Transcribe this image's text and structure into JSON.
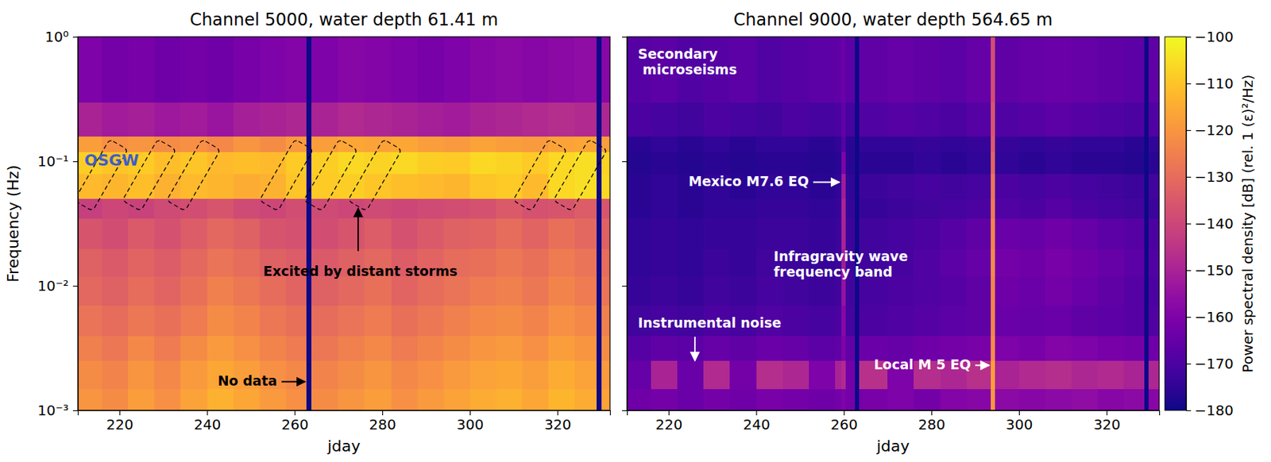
{
  "chart_data": [
    {
      "type": "heatmap",
      "title": "Channel 5000, water depth 61.41 m",
      "xlabel": "jday",
      "ylabel": "Frequency (Hz)",
      "log": "y",
      "xlim": [
        210.5,
        332
      ],
      "ylim": [
        0.001,
        1
      ],
      "xticks": [
        220,
        240,
        260,
        280,
        300,
        320
      ],
      "yticks": [
        {
          "value": 0.001,
          "label": "10⁻³"
        },
        {
          "value": 0.01,
          "label": "10⁻²"
        },
        {
          "value": 0.1,
          "label": "10⁻¹"
        },
        {
          "value": 1,
          "label": "10⁰"
        }
      ],
      "x_edges": [
        210.5,
        216,
        222,
        228,
        234,
        240,
        246,
        252,
        258,
        262.6,
        263.8,
        270,
        276,
        282,
        288,
        294,
        300,
        306,
        312,
        318,
        324,
        328.8,
        330,
        332
      ],
      "y_edges": [
        0.001,
        0.0015,
        0.0025,
        0.004,
        0.007,
        0.012,
        0.02,
        0.035,
        0.05,
        0.08,
        0.12,
        0.16,
        0.3,
        1
      ],
      "cells": [
        [
          -120,
          -122,
          -118,
          -121,
          -117,
          -114,
          -116,
          -119,
          -121,
          null,
          -122,
          -120,
          -118,
          -121,
          -119,
          -117,
          -115,
          -114,
          -116,
          -113,
          -115,
          null,
          -117
        ],
        [
          -122,
          -124,
          -120,
          -123,
          -119,
          -116,
          -118,
          -121,
          -123,
          null,
          -124,
          -122,
          -120,
          -123,
          -121,
          -119,
          -117,
          -116,
          -118,
          -115,
          -117,
          null,
          -119
        ],
        [
          -125,
          -127,
          -123,
          -126,
          -122,
          -119,
          -121,
          -124,
          -126,
          null,
          -127,
          -125,
          -123,
          -126,
          -124,
          -122,
          -120,
          -119,
          -121,
          -118,
          -120,
          null,
          -122
        ],
        [
          -128,
          -130,
          -127,
          -129,
          -126,
          -122,
          -124,
          -127,
          -129,
          null,
          -130,
          -128,
          -126,
          -129,
          -127,
          -125,
          -123,
          -122,
          -124,
          -121,
          -123,
          null,
          -125
        ],
        [
          -131,
          -133,
          -130,
          -132,
          -129,
          -125,
          -127,
          -130,
          -132,
          null,
          -133,
          -131,
          -129,
          -132,
          -130,
          -128,
          -126,
          -125,
          -127,
          -124,
          -126,
          null,
          -128
        ],
        [
          -133,
          -135,
          -132,
          -134,
          -131,
          -128,
          -130,
          -133,
          -134,
          null,
          -135,
          -133,
          -131,
          -134,
          -132,
          -130,
          -129,
          -127,
          -129,
          -126,
          -128,
          null,
          -130
        ],
        [
          -136,
          -138,
          -135,
          -137,
          -134,
          -131,
          -133,
          -136,
          -137,
          null,
          -138,
          -136,
          -134,
          -137,
          -135,
          -133,
          -132,
          -130,
          -132,
          -129,
          -131,
          null,
          -133
        ],
        [
          -142,
          -140,
          -141,
          -139,
          -138,
          -136,
          -139,
          -140,
          -138,
          null,
          -139,
          -140,
          -139,
          -140,
          -139,
          -138,
          -137,
          -135,
          -137,
          -136,
          -134,
          null,
          -136
        ],
        [
          -112,
          -113,
          -111,
          -114,
          -112,
          -113,
          -115,
          -114,
          -110,
          null,
          -109,
          -108,
          -110,
          -111,
          -112,
          -113,
          -110,
          -109,
          -112,
          -106,
          -105,
          null,
          -106
        ],
        [
          -108,
          -110,
          -109,
          -111,
          -110,
          -112,
          -111,
          -112,
          -109,
          null,
          -108,
          -106,
          -107,
          -106,
          -108,
          -109,
          -106,
          -107,
          -109,
          -106,
          -105,
          null,
          -107
        ],
        [
          -118,
          -121,
          -120,
          -122,
          -121,
          -123,
          -120,
          -122,
          -119,
          null,
          -118,
          -116,
          -117,
          -116,
          -118,
          -119,
          -117,
          -118,
          -119,
          -117,
          -116,
          null,
          -118
        ],
        [
          -150,
          -152,
          -151,
          -153,
          -152,
          -154,
          -151,
          -150,
          -149,
          null,
          -150,
          -148,
          -149,
          -150,
          -151,
          -152,
          -150,
          -149,
          -148,
          -147,
          -148,
          null,
          -149
        ],
        [
          -160,
          -162,
          -161,
          -163,
          -162,
          -163,
          -161,
          -160,
          -159,
          null,
          -160,
          -158,
          -159,
          -160,
          -161,
          -160,
          -158,
          -157,
          -158,
          -157,
          -156,
          null,
          -158
        ]
      ],
      "storm_jdays": [
        215.8,
        226.8,
        236.9,
        258.1,
        268.2,
        278.3,
        316,
        325.2
      ],
      "annotations": [
        {
          "text": [
            "OSGW"
          ]
        },
        {
          "text": [
            "Excited by distant storms"
          ]
        },
        {
          "text": [
            "No data"
          ]
        }
      ]
    },
    {
      "type": "heatmap",
      "title": "Channel 9000, water depth 564.65 m",
      "xlabel": "jday",
      "log": "y",
      "tick_labels": "x",
      "xlim": [
        210.5,
        332
      ],
      "ylim": [
        0.001,
        1
      ],
      "xticks": [
        220,
        240,
        260,
        280,
        300,
        320
      ],
      "yticks": [
        0.001,
        0.01,
        0.1,
        1
      ],
      "x_edges": [
        210.5,
        216,
        222,
        228,
        234,
        240,
        246,
        252,
        258,
        259.5,
        260.5,
        262.5,
        263.5,
        270,
        276,
        282,
        288,
        293.5,
        294.5,
        300,
        306,
        312,
        318,
        324,
        328.5,
        329.5,
        332
      ],
      "y_edges": [
        0.001,
        0.0015,
        0.0025,
        0.004,
        0.007,
        0.012,
        0.02,
        0.035,
        0.05,
        0.08,
        0.12,
        0.16,
        0.3,
        1
      ],
      "cells": [
        [
          -163,
          -162,
          -164,
          -162,
          -163,
          -161,
          -162,
          -163,
          -162,
          -160,
          -162,
          null,
          -161,
          -160,
          -162,
          -159,
          -158,
          -120,
          -157,
          -158,
          -157,
          -156,
          -158,
          -157,
          null,
          -158
        ],
        [
          -165,
          -150,
          -164,
          -148,
          -162,
          -147,
          -149,
          -160,
          -150,
          -148,
          -162,
          null,
          -146,
          -160,
          -147,
          -149,
          -146,
          -118,
          -150,
          -148,
          -147,
          -149,
          -148,
          -150,
          null,
          -149
        ],
        [
          -168,
          -166,
          -167,
          -165,
          -166,
          -164,
          -165,
          -167,
          -166,
          -160,
          -166,
          null,
          -164,
          -165,
          -163,
          -162,
          -161,
          -122,
          -160,
          -161,
          -159,
          -160,
          -161,
          -162,
          null,
          -163
        ],
        [
          -172,
          -171,
          -172,
          -170,
          -171,
          -169,
          -170,
          -171,
          -170,
          -158,
          -171,
          null,
          -170,
          -169,
          -168,
          -167,
          -166,
          -124,
          -164,
          -165,
          -164,
          -166,
          -167,
          -168,
          null,
          -169
        ],
        [
          -174,
          -173,
          -174,
          -172,
          -173,
          -171,
          -172,
          -173,
          -172,
          -155,
          -172,
          null,
          -171,
          -170,
          -169,
          -168,
          -166,
          -124,
          -163,
          -164,
          -162,
          -164,
          -166,
          -168,
          null,
          -170
        ],
        [
          -175,
          -174,
          -175,
          -173,
          -174,
          -172,
          -173,
          -174,
          -173,
          -152,
          -173,
          null,
          -172,
          -171,
          -169,
          -167,
          -165,
          -123,
          -162,
          -163,
          -161,
          -163,
          -165,
          -167,
          null,
          -169
        ],
        [
          -175,
          -174,
          -175,
          -174,
          -174,
          -173,
          -173,
          -174,
          -173,
          -150,
          -173,
          null,
          -172,
          -171,
          -170,
          -168,
          -166,
          -124,
          -164,
          -165,
          -163,
          -165,
          -167,
          -168,
          null,
          -170
        ],
        [
          -176,
          -175,
          -176,
          -175,
          -175,
          -174,
          -174,
          -175,
          -174,
          -150,
          -174,
          null,
          -174,
          -173,
          -172,
          -171,
          -170,
          -126,
          -169,
          -170,
          -168,
          -170,
          -171,
          -172,
          null,
          -173
        ],
        [
          -176,
          -175,
          -176,
          -175,
          -176,
          -175,
          -175,
          -176,
          -175,
          -152,
          -175,
          null,
          -173,
          -172,
          -171,
          -172,
          -171,
          -128,
          -170,
          -171,
          -170,
          -171,
          -172,
          -173,
          null,
          -172
        ],
        [
          -177,
          -176,
          -177,
          -176,
          -177,
          -176,
          -176,
          -177,
          -176,
          -160,
          -176,
          null,
          -176,
          -176,
          -175,
          -176,
          -175,
          -132,
          -175,
          -176,
          -175,
          -176,
          -176,
          -177,
          null,
          -176
        ],
        [
          -176,
          -175,
          -176,
          -175,
          -176,
          -175,
          -175,
          -176,
          -175,
          -168,
          -176,
          null,
          -175,
          -175,
          -174,
          -175,
          -174,
          -135,
          -174,
          -175,
          -174,
          -175,
          -175,
          -176,
          null,
          -175
        ],
        [
          -170,
          -171,
          -172,
          -170,
          -171,
          -172,
          -170,
          -171,
          -170,
          -166,
          -171,
          null,
          -169,
          -168,
          -169,
          -170,
          -168,
          -136,
          -169,
          -168,
          -167,
          -168,
          -169,
          -170,
          null,
          -169
        ],
        [
          -168,
          -167,
          -169,
          -168,
          -167,
          -169,
          -168,
          -167,
          -166,
          -164,
          -167,
          null,
          -166,
          -165,
          -166,
          -167,
          -165,
          -138,
          -166,
          -165,
          -164,
          -165,
          -166,
          -167,
          null,
          -166
        ]
      ],
      "annotations": [
        {
          "text": [
            "Secondary",
            " microseisms"
          ]
        },
        {
          "text": [
            "Mexico M7.6 EQ"
          ]
        },
        {
          "text": [
            "Infragravity wave",
            "frequency band"
          ]
        },
        {
          "text": [
            "Instrumental noise"
          ]
        },
        {
          "text": [
            "Local M 5 EQ"
          ]
        }
      ],
      "colorbar": {
        "range": [
          -180,
          -100
        ],
        "ticks": [
          {
            "value": -100,
            "label": "−100"
          },
          {
            "value": -110,
            "label": "−110"
          },
          {
            "value": -120,
            "label": "−120"
          },
          {
            "value": -130,
            "label": "−130"
          },
          {
            "value": -140,
            "label": "−140"
          },
          {
            "value": -150,
            "label": "−150"
          },
          {
            "value": -160,
            "label": "−160"
          },
          {
            "value": -170,
            "label": "−170"
          },
          {
            "value": -180,
            "label": "−180"
          }
        ],
        "label": "Power spectral density [dB] (rel. 1 (ε)²/Hz)"
      }
    }
  ]
}
